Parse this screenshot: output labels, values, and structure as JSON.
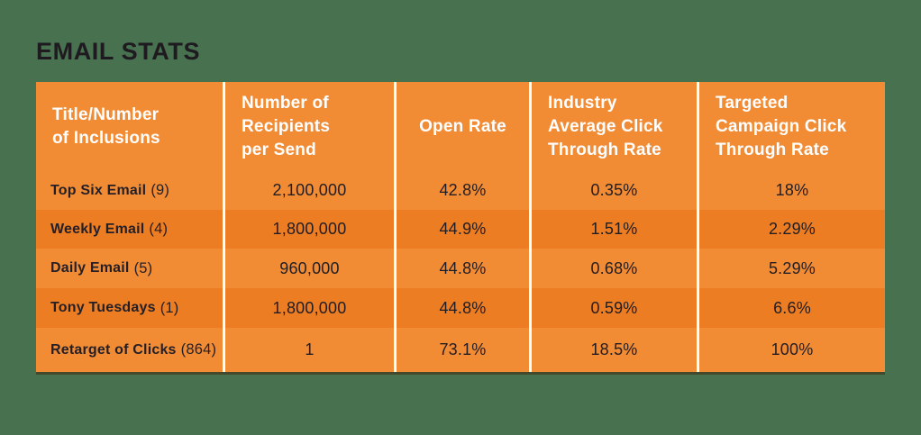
{
  "page": {
    "title": "EMAIL STATS",
    "background_color": "#47714F"
  },
  "table": {
    "colors": {
      "header_bg": "#F18C35",
      "row_light": "#F18C35",
      "row_dark": "#EC7D22",
      "divider": "#FFFFFF",
      "header_text": "#FFFFFF",
      "body_text": "#221D22"
    },
    "headers": [
      "Title/Number\nof Inclusions",
      "Number of\nRecipients\nper Send",
      "Open Rate",
      "Industry\nAverage Click\nThrough Rate",
      "Targeted\nCampaign Click\nThrough Rate"
    ],
    "rows": [
      {
        "label": "Top Six Email",
        "count": "(9)",
        "recipients": "2,100,000",
        "open_rate": "42.8%",
        "industry_ctr": "0.35%",
        "targeted_ctr": "18%"
      },
      {
        "label": "Weekly Email",
        "count": "(4)",
        "recipients": "1,800,000",
        "open_rate": "44.9%",
        "industry_ctr": "1.51%",
        "targeted_ctr": "2.29%"
      },
      {
        "label": "Daily Email",
        "count": "(5)",
        "recipients": "960,000",
        "open_rate": "44.8%",
        "industry_ctr": "0.68%",
        "targeted_ctr": "5.29%"
      },
      {
        "label": "Tony Tuesdays",
        "count": "(1)",
        "recipients": "1,800,000",
        "open_rate": "44.8%",
        "industry_ctr": "0.59%",
        "targeted_ctr": "6.6%"
      },
      {
        "label": "Retarget of Clicks",
        "count": "(864)",
        "recipients": "1",
        "open_rate": "73.1%",
        "industry_ctr": "18.5%",
        "targeted_ctr": "100%"
      }
    ]
  },
  "chart_data": {
    "type": "table",
    "title": "EMAIL STATS",
    "columns": [
      "Title/Number of Inclusions",
      "Number of Recipients per Send",
      "Open Rate",
      "Industry Average Click Through Rate",
      "Targeted Campaign Click Through Rate"
    ],
    "rows": [
      [
        "Top Six Email (9)",
        2100000,
        "42.8%",
        "0.35%",
        "18%"
      ],
      [
        "Weekly Email (4)",
        1800000,
        "44.9%",
        "1.51%",
        "2.29%"
      ],
      [
        "Daily Email (5)",
        960000,
        "44.8%",
        "0.68%",
        "5.29%"
      ],
      [
        "Tony Tuesdays (1)",
        1800000,
        "44.8%",
        "0.59%",
        "6.6%"
      ],
      [
        "Retarget of Clicks (864)",
        1,
        "73.1%",
        "18.5%",
        "100%"
      ]
    ]
  }
}
